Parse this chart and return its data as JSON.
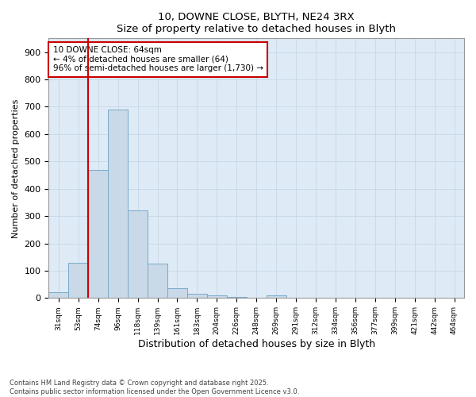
{
  "title_line1": "10, DOWNE CLOSE, BLYTH, NE24 3RX",
  "title_line2": "Size of property relative to detached houses in Blyth",
  "xlabel": "Distribution of detached houses by size in Blyth",
  "ylabel": "Number of detached properties",
  "footer": "Contains HM Land Registry data © Crown copyright and database right 2025.\nContains public sector information licensed under the Open Government Licence v3.0.",
  "categories": [
    "31sqm",
    "53sqm",
    "74sqm",
    "96sqm",
    "118sqm",
    "139sqm",
    "161sqm",
    "183sqm",
    "204sqm",
    "226sqm",
    "248sqm",
    "269sqm",
    "291sqm",
    "312sqm",
    "334sqm",
    "356sqm",
    "377sqm",
    "399sqm",
    "421sqm",
    "442sqm",
    "464sqm"
  ],
  "values": [
    20,
    130,
    470,
    690,
    320,
    125,
    35,
    15,
    10,
    5,
    0,
    10,
    0,
    0,
    0,
    0,
    0,
    0,
    0,
    0,
    0
  ],
  "bar_color": "#c9d9e8",
  "bar_edge_color": "#7aaac8",
  "grid_color": "#c8d8e8",
  "background_color": "#deeaf5",
  "ylim": [
    0,
    950
  ],
  "yticks": [
    0,
    100,
    200,
    300,
    400,
    500,
    600,
    700,
    800,
    900
  ],
  "property_line_color": "#cc0000",
  "property_line_x": 2.0,
  "annotation_text": "10 DOWNE CLOSE: 64sqm\n← 4% of detached houses are smaller (64)\n96% of semi-detached houses are larger (1,730) →",
  "annotation_box_color": "#cc0000",
  "annotation_box_facecolor": "white"
}
